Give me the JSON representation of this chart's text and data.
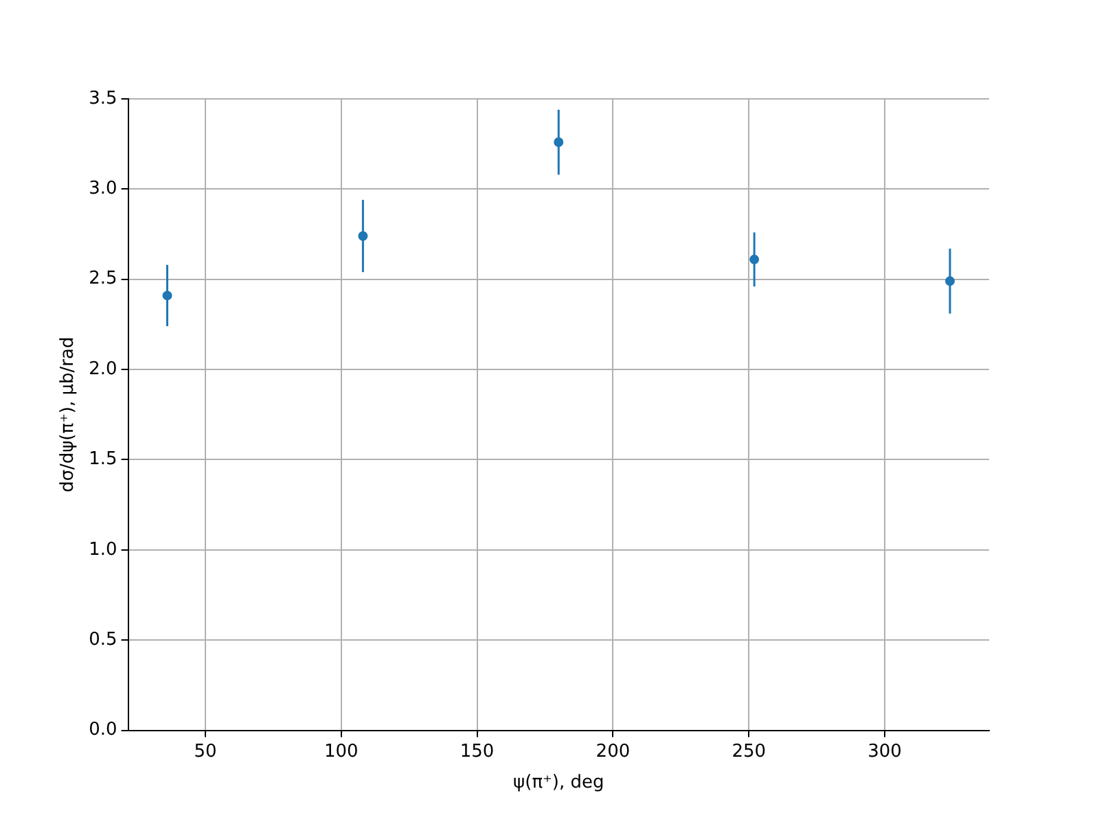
{
  "chart_data": {
    "type": "scatter",
    "xlabel": "ψ(π⁺), deg",
    "ylabel": "dσ/dψ(π⁺), μb/rad",
    "x": [
      36,
      108,
      180,
      252,
      324
    ],
    "series": [
      {
        "color": "#1f77b4",
        "values": [
          2.41,
          2.74,
          3.26,
          2.61,
          2.49
        ],
        "errors": [
          0.17,
          0.2,
          0.18,
          0.15,
          0.18
        ]
      }
    ],
    "xlim": [
      21.6,
      338.4
    ],
    "xticks": [
      50,
      100,
      150,
      200,
      250,
      300
    ],
    "ylim": [
      0,
      3.5
    ],
    "yticks": [
      {
        "value": 0,
        "label": "0.0"
      },
      0.5,
      {
        "value": 1,
        "label": "1.0"
      },
      1.5,
      {
        "value": 2,
        "label": "2.0"
      },
      2.5,
      {
        "value": 3,
        "label": "3.0"
      },
      3.5
    ],
    "grid": true,
    "legend": false,
    "marker": "circle"
  }
}
